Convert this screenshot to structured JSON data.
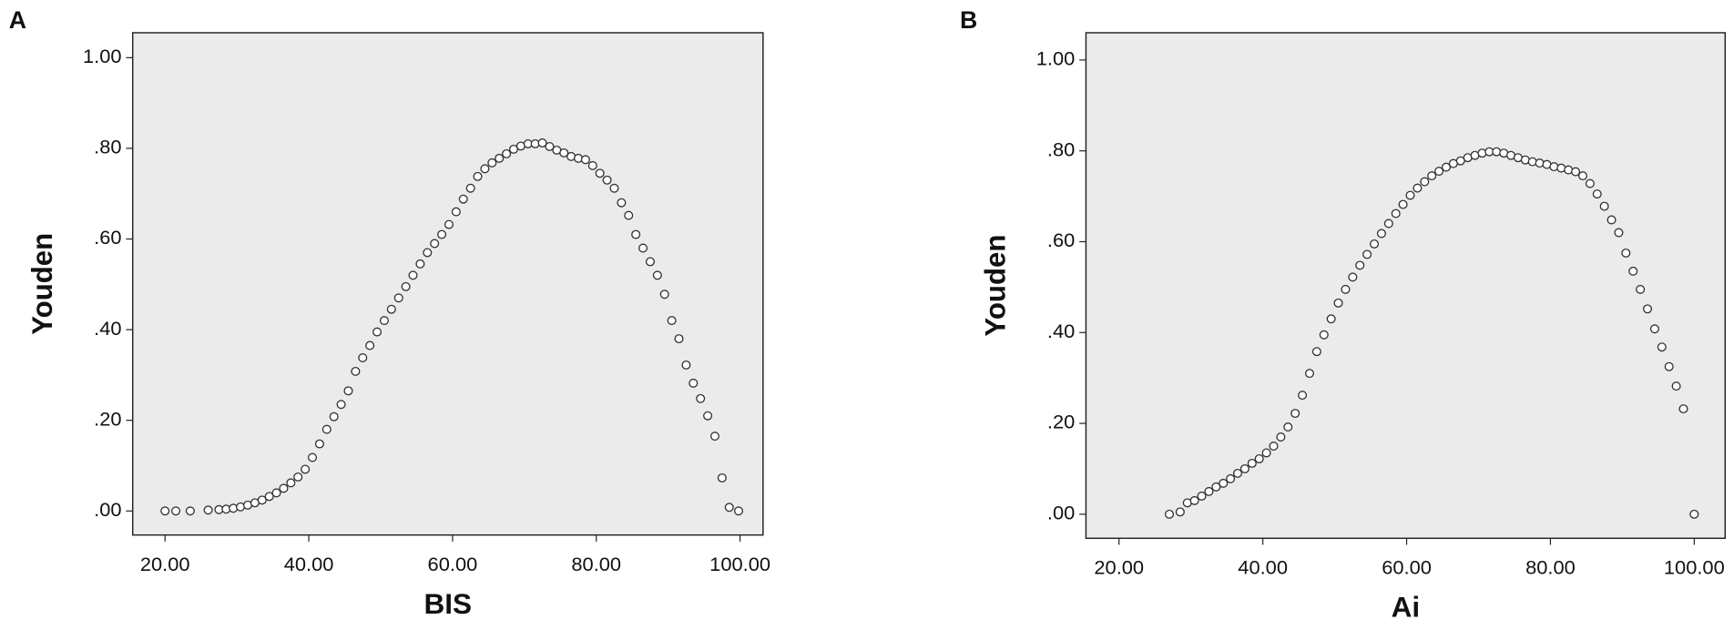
{
  "chart_data": [
    {
      "type": "scatter",
      "panel": "A",
      "x_label": "BIS",
      "y_label": "Youden",
      "color": "#333333",
      "x": [
        20,
        21.5,
        23.5,
        26,
        27.5,
        28.5,
        29.5,
        30.5,
        31.5,
        32.5,
        33.5,
        34.5,
        35.5,
        36.5,
        37.5,
        38.5,
        39.5,
        40.5,
        41.5,
        42.5,
        43.5,
        44.5,
        45.5,
        46.5,
        47.5,
        48.5,
        49.5,
        50.5,
        51.5,
        52.5,
        53.5,
        54.5,
        55.5,
        56.5,
        57.5,
        58.5,
        59.5,
        60.5,
        61.5,
        62.5,
        63.5,
        64.5,
        65.5,
        66.5,
        67.5,
        68.5,
        69.5,
        70.5,
        71.5,
        72.5,
        73.5,
        74.5,
        75.5,
        76.5,
        77.5,
        78.5,
        79.5,
        80.5,
        81.5,
        82.5,
        83.5,
        84.5,
        85.5,
        86.5,
        87.5,
        88.5,
        89.5,
        90.5,
        91.5,
        92.5,
        93.5,
        94.5,
        95.5,
        96.5,
        97.5,
        98.5,
        99.8
      ],
      "values": [
        0,
        0,
        0,
        0.002,
        0.003,
        0.004,
        0.006,
        0.009,
        0.013,
        0.018,
        0.024,
        0.032,
        0.04,
        0.05,
        0.062,
        0.075,
        0.092,
        0.118,
        0.148,
        0.18,
        0.208,
        0.235,
        0.265,
        0.308,
        0.338,
        0.365,
        0.395,
        0.42,
        0.445,
        0.47,
        0.495,
        0.52,
        0.545,
        0.57,
        0.59,
        0.61,
        0.632,
        0.66,
        0.688,
        0.712,
        0.738,
        0.755,
        0.768,
        0.778,
        0.788,
        0.798,
        0.805,
        0.81,
        0.81,
        0.812,
        0.804,
        0.796,
        0.79,
        0.782,
        0.778,
        0.775,
        0.762,
        0.745,
        0.73,
        0.712,
        0.68,
        0.652,
        0.61,
        0.58,
        0.55,
        0.52,
        0.478,
        0.42,
        0.38,
        0.322,
        0.282,
        0.248,
        0.21,
        0.165,
        0.073,
        0.008,
        0
      ],
      "xlim": [
        15.5,
        103.2
      ],
      "ylim": [
        -0.053,
        1.055
      ],
      "xticks": [
        {
          "value": 20,
          "label": "20.00"
        },
        {
          "value": 40,
          "label": "40.00"
        },
        {
          "value": 60,
          "label": "60.00"
        },
        {
          "value": 80,
          "label": "80.00"
        },
        {
          "value": 100,
          "label": "100.00"
        }
      ],
      "yticks": [
        {
          "value": 0,
          "label": ".00"
        },
        {
          "value": 0.2,
          "label": ".20"
        },
        {
          "value": 0.4,
          "label": ".40"
        },
        {
          "value": 0.6,
          "label": ".60"
        },
        {
          "value": 0.8,
          "label": ".80"
        },
        {
          "value": 1,
          "label": "1.00"
        }
      ]
    },
    {
      "type": "scatter",
      "panel": "B",
      "x_label": "Ai",
      "y_label": "Youden",
      "color": "#333333",
      "x": [
        27,
        28.5,
        29.5,
        30.5,
        31.5,
        32.5,
        33.5,
        34.5,
        35.5,
        36.5,
        37.5,
        38.5,
        39.5,
        40.5,
        41.5,
        42.5,
        43.5,
        44.5,
        45.5,
        46.5,
        47.5,
        48.5,
        49.5,
        50.5,
        51.5,
        52.5,
        53.5,
        54.5,
        55.5,
        56.5,
        57.5,
        58.5,
        59.5,
        60.5,
        61.5,
        62.5,
        63.5,
        64.5,
        65.5,
        66.5,
        67.5,
        68.5,
        69.5,
        70.5,
        71.5,
        72.5,
        73.5,
        74.5,
        75.5,
        76.5,
        77.5,
        78.5,
        79.5,
        80.5,
        81.5,
        82.5,
        83.5,
        84.5,
        85.5,
        86.5,
        87.5,
        88.5,
        89.5,
        90.5,
        91.5,
        92.5,
        93.5,
        94.5,
        95.5,
        96.5,
        97.5,
        98.5,
        100
      ],
      "values": [
        0,
        0.005,
        0.025,
        0.03,
        0.04,
        0.05,
        0.06,
        0.068,
        0.078,
        0.09,
        0.1,
        0.112,
        0.122,
        0.135,
        0.15,
        0.17,
        0.192,
        0.222,
        0.262,
        0.31,
        0.358,
        0.395,
        0.43,
        0.465,
        0.495,
        0.522,
        0.548,
        0.572,
        0.595,
        0.618,
        0.64,
        0.662,
        0.682,
        0.702,
        0.718,
        0.732,
        0.745,
        0.755,
        0.764,
        0.772,
        0.778,
        0.785,
        0.79,
        0.795,
        0.798,
        0.798,
        0.795,
        0.79,
        0.785,
        0.78,
        0.776,
        0.773,
        0.77,
        0.765,
        0.762,
        0.758,
        0.754,
        0.745,
        0.728,
        0.705,
        0.678,
        0.648,
        0.62,
        0.575,
        0.535,
        0.495,
        0.452,
        0.408,
        0.368,
        0.325,
        0.282,
        0.232,
        0
      ],
      "xlim": [
        15.4,
        104.3
      ],
      "ylim": [
        -0.053,
        1.06
      ],
      "xticks": [
        {
          "value": 20,
          "label": "20.00"
        },
        {
          "value": 40,
          "label": "40.00"
        },
        {
          "value": 60,
          "label": "60.00"
        },
        {
          "value": 80,
          "label": "80.00"
        },
        {
          "value": 100,
          "label": "100.00"
        }
      ],
      "yticks": [
        {
          "value": 0,
          "label": ".00"
        },
        {
          "value": 0.2,
          "label": ".20"
        },
        {
          "value": 0.4,
          "label": ".40"
        },
        {
          "value": 0.6,
          "label": ".60"
        },
        {
          "value": 0.8,
          "label": ".80"
        },
        {
          "value": 1,
          "label": "1.00"
        }
      ]
    }
  ]
}
